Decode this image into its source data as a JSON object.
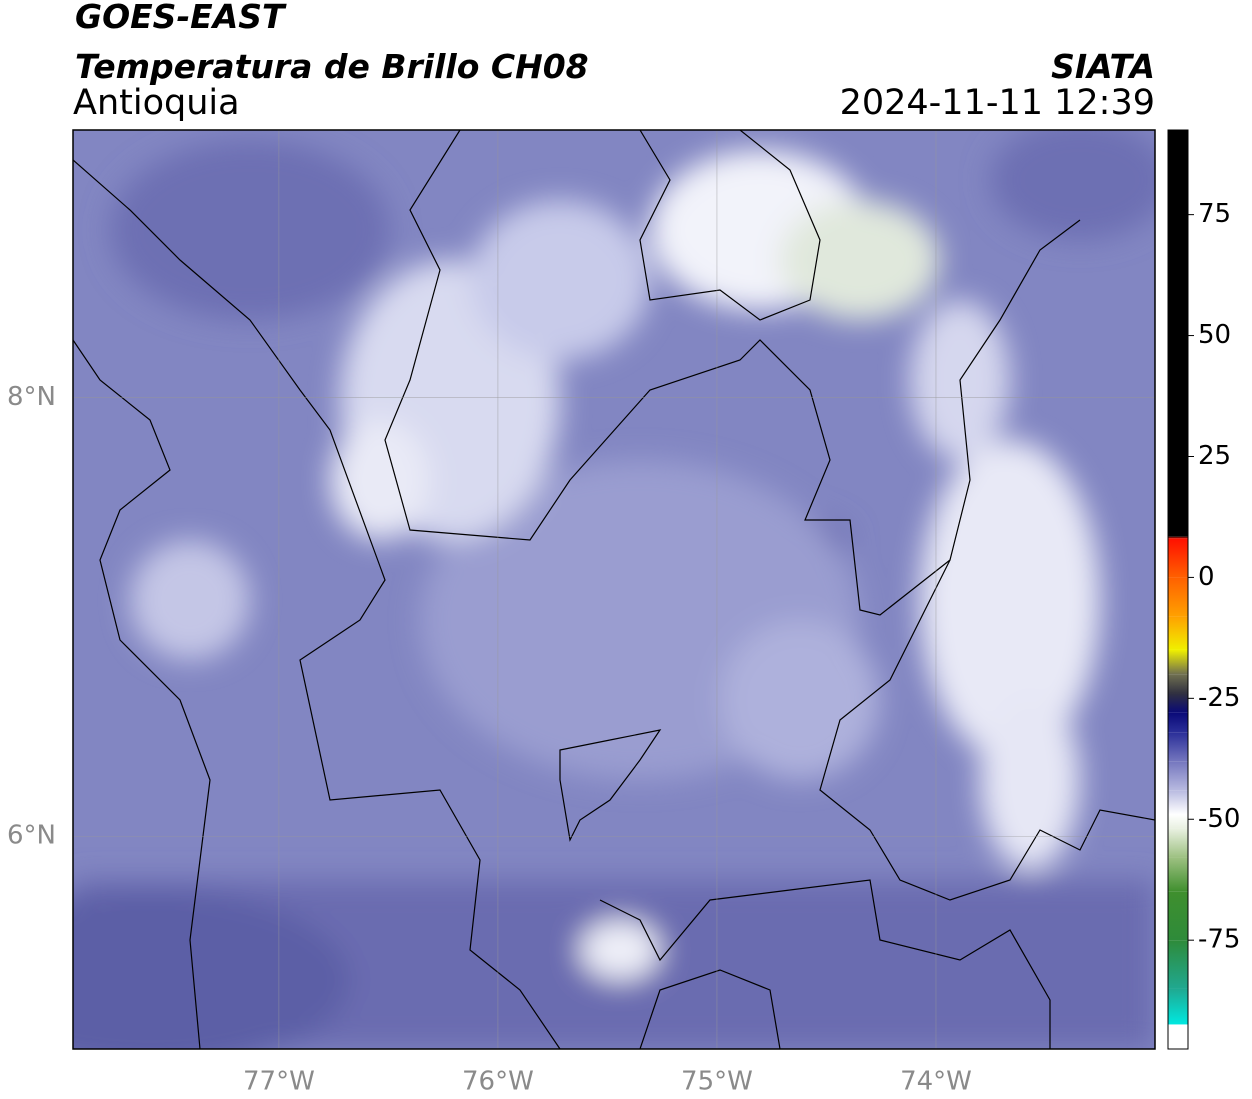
{
  "header": {
    "title": "GOES-EAST",
    "subtitle": "Temperatura de Brillo CH08",
    "region": "Antioquia",
    "source": "SIATA",
    "datetime": "2024-11-11 12:39"
  },
  "map": {
    "lon_range": [
      -77.94,
      -73.0
    ],
    "lat_range": [
      5.03,
      9.22
    ],
    "lon_ticks": [
      {
        "value": -77,
        "label": "77°W"
      },
      {
        "value": -76,
        "label": "76°W"
      },
      {
        "value": -75,
        "label": "75°W"
      },
      {
        "value": -74,
        "label": "74°W"
      }
    ],
    "lat_ticks": [
      {
        "value": 8,
        "label": "8°N"
      },
      {
        "value": 6,
        "label": "6°N"
      }
    ],
    "grid": true
  },
  "colorbar": {
    "range": [
      -97.5,
      92.5
    ],
    "ticks": [
      75,
      50,
      25,
      0,
      -25,
      -50,
      -75
    ],
    "stops": [
      {
        "value": -97.5,
        "color": "#ffffff"
      },
      {
        "value": -92.5,
        "color": "#ffffff"
      },
      {
        "value": -92.4,
        "color": "#00e8e0"
      },
      {
        "value": -85,
        "color": "#20a890"
      },
      {
        "value": -75,
        "color": "#2e8b3a"
      },
      {
        "value": -65,
        "color": "#3f8f2e"
      },
      {
        "value": -58,
        "color": "#9cc080"
      },
      {
        "value": -52,
        "color": "#e8f0e0"
      },
      {
        "value": -49,
        "color": "#ffffff"
      },
      {
        "value": -44,
        "color": "#b8bae0"
      },
      {
        "value": -38,
        "color": "#7476be"
      },
      {
        "value": -32,
        "color": "#2a2e98"
      },
      {
        "value": -28,
        "color": "#0a0a78"
      },
      {
        "value": -24,
        "color": "#303040"
      },
      {
        "value": -20,
        "color": "#707050"
      },
      {
        "value": -15,
        "color": "#f0f000"
      },
      {
        "value": -8,
        "color": "#ffa000"
      },
      {
        "value": 0,
        "color": "#ff6000"
      },
      {
        "value": 8,
        "color": "#ff1000"
      },
      {
        "value": 8.5,
        "color": "#000000"
      },
      {
        "value": 92.5,
        "color": "#000000"
      }
    ]
  }
}
